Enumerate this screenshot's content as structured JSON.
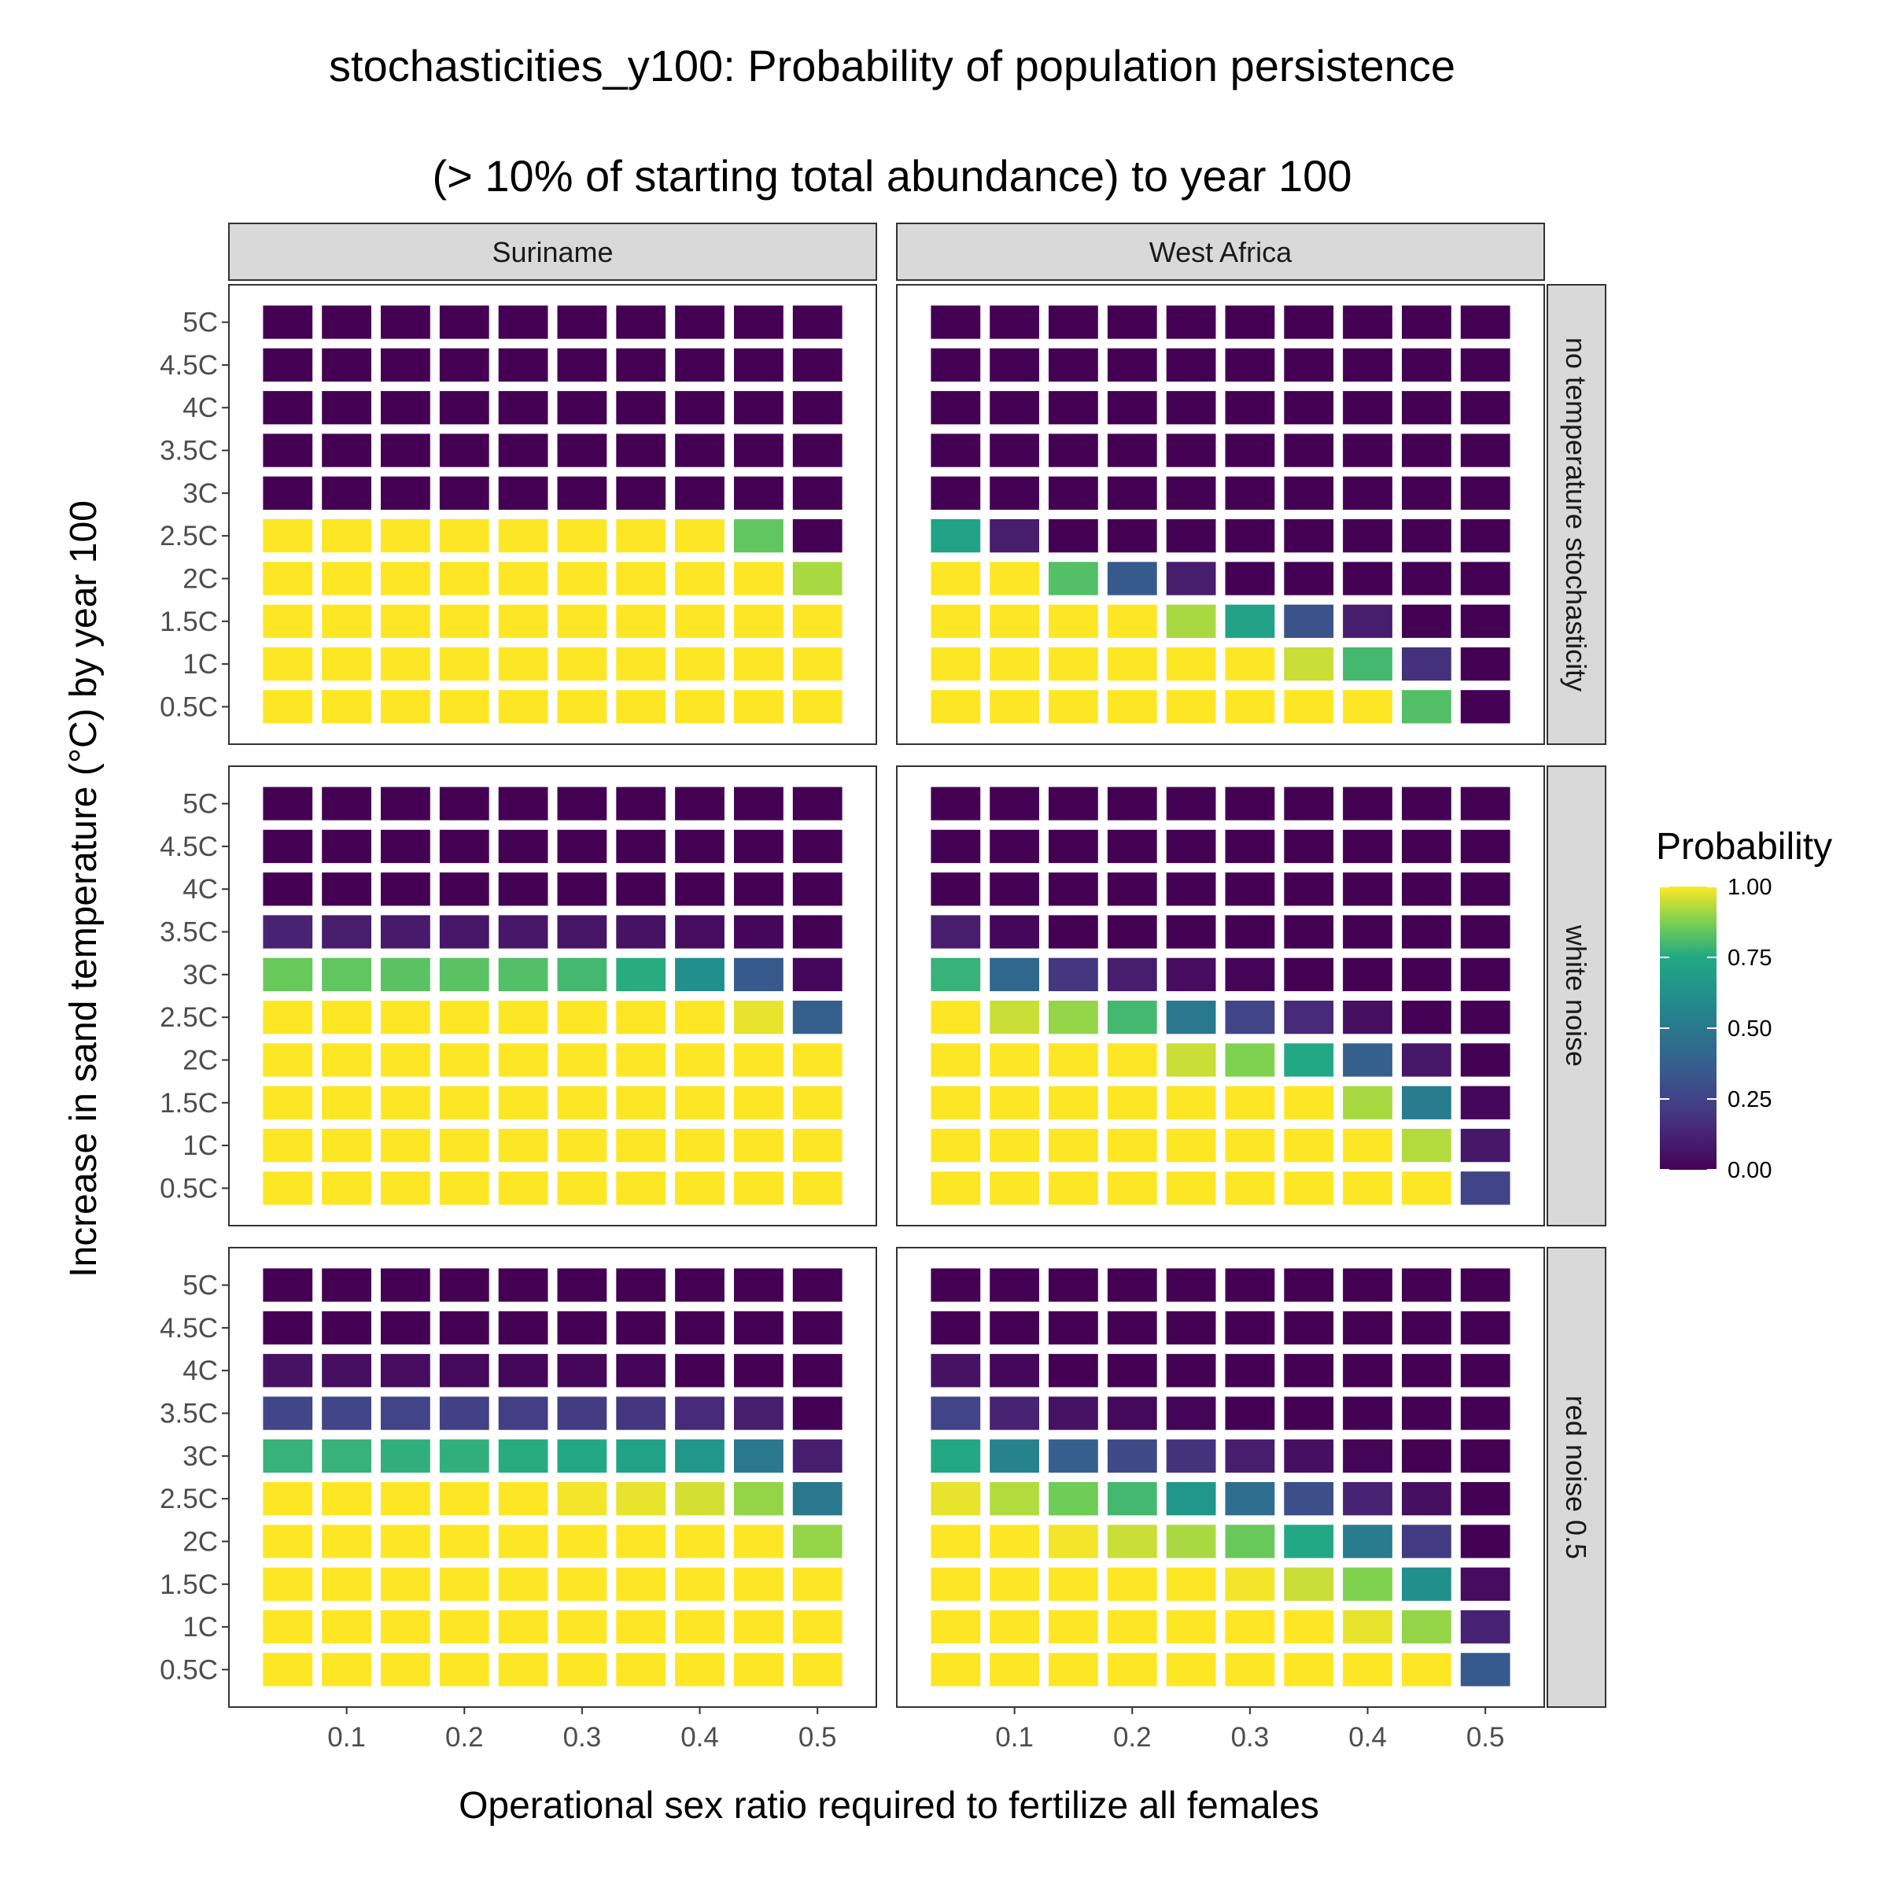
{
  "chart_data": {
    "type": "heatmap",
    "title_line1": "stochasticities_y100: Probability of population persistence",
    "title_line2": "(> 10% of starting total abundance) to year 100",
    "xlabel": "Operational sex ratio required to fertilize all females",
    "ylabel": "Increase in sand temperature (°C) by year 100",
    "x": [
      0.05,
      0.1,
      0.15,
      0.2,
      0.25,
      0.3,
      0.35,
      0.4,
      0.45,
      0.5
    ],
    "x_tick_values": [
      0.1,
      0.2,
      0.3,
      0.4,
      0.5
    ],
    "x_tick_labels": [
      "0.1",
      "0.2",
      "0.3",
      "0.4",
      "0.5"
    ],
    "y_labels": [
      "5C",
      "4.5C",
      "4C",
      "3.5C",
      "3C",
      "2.5C",
      "2C",
      "1.5C",
      "1C",
      "0.5C"
    ],
    "column_facets": [
      "Suriname",
      "West Africa"
    ],
    "row_facets": [
      "no temperature stochasticity",
      "white noise",
      "red noise 0.5"
    ],
    "legend": {
      "title": "Probability",
      "ticks": [
        "1.00",
        "0.75",
        "0.50",
        "0.25",
        "0.00"
      ],
      "tick_values": [
        1.0,
        0.75,
        0.5,
        0.25,
        0.0
      ],
      "colormap": "viridis",
      "placement": "right"
    },
    "panels": [
      {
        "column": "Suriname",
        "row": "no temperature stochasticity",
        "values": [
          [
            0,
            0,
            0,
            0,
            0,
            0,
            0,
            0,
            0,
            0
          ],
          [
            0,
            0,
            0,
            0,
            0,
            0,
            0,
            0,
            0,
            0
          ],
          [
            0,
            0,
            0,
            0,
            0,
            0,
            0,
            0,
            0,
            0
          ],
          [
            0,
            0,
            0,
            0,
            0,
            0,
            0,
            0,
            0,
            0
          ],
          [
            0,
            0,
            0,
            0,
            0,
            0,
            0,
            0,
            0,
            0
          ],
          [
            1,
            1,
            1,
            1,
            1,
            1,
            1,
            1,
            0.84,
            0
          ],
          [
            1,
            1,
            1,
            1,
            1,
            1,
            1,
            1,
            1,
            0.92
          ],
          [
            1,
            1,
            1,
            1,
            1,
            1,
            1,
            1,
            1,
            1
          ],
          [
            1,
            1,
            1,
            1,
            1,
            1,
            1,
            1,
            1,
            1
          ],
          [
            1,
            1,
            1,
            1,
            1,
            1,
            1,
            1,
            1,
            1
          ]
        ]
      },
      {
        "column": "West Africa",
        "row": "no temperature stochasticity",
        "values": [
          [
            0,
            0,
            0,
            0,
            0,
            0,
            0,
            0,
            0,
            0
          ],
          [
            0,
            0,
            0,
            0,
            0,
            0,
            0,
            0,
            0,
            0
          ],
          [
            0,
            0,
            0,
            0,
            0,
            0,
            0,
            0,
            0,
            0
          ],
          [
            0,
            0,
            0,
            0,
            0,
            0,
            0,
            0,
            0,
            0
          ],
          [
            0,
            0,
            0,
            0,
            0,
            0,
            0,
            0,
            0,
            0
          ],
          [
            0.72,
            0.1,
            0,
            0,
            0,
            0,
            0,
            0,
            0,
            0
          ],
          [
            1,
            1,
            0.82,
            0.35,
            0.1,
            0,
            0,
            0,
            0,
            0
          ],
          [
            1,
            1,
            1,
            1,
            0.92,
            0.72,
            0.32,
            0.1,
            0,
            0
          ],
          [
            1,
            1,
            1,
            1,
            1,
            1,
            0.95,
            0.8,
            0.18,
            0
          ],
          [
            1,
            1,
            1,
            1,
            1,
            1,
            1,
            1,
            0.82,
            0
          ]
        ]
      },
      {
        "column": "Suriname",
        "row": "white noise",
        "values": [
          [
            0,
            0,
            0,
            0,
            0,
            0,
            0,
            0,
            0,
            0
          ],
          [
            0,
            0,
            0,
            0,
            0,
            0,
            0,
            0,
            0,
            0
          ],
          [
            0,
            0,
            0,
            0,
            0,
            0,
            0,
            0,
            0,
            0
          ],
          [
            0.12,
            0.1,
            0.09,
            0.08,
            0.08,
            0.07,
            0.06,
            0.04,
            0.02,
            0
          ],
          [
            0.85,
            0.84,
            0.83,
            0.83,
            0.82,
            0.8,
            0.76,
            0.62,
            0.35,
            0.02
          ],
          [
            1,
            1,
            1,
            1,
            1,
            1,
            1,
            1,
            0.98,
            0.38
          ],
          [
            1,
            1,
            1,
            1,
            1,
            1,
            1,
            1,
            1,
            1
          ],
          [
            1,
            1,
            1,
            1,
            1,
            1,
            1,
            1,
            1,
            1
          ],
          [
            1,
            1,
            1,
            1,
            1,
            1,
            1,
            1,
            1,
            1
          ],
          [
            1,
            1,
            1,
            1,
            1,
            1,
            1,
            1,
            1,
            1
          ]
        ]
      },
      {
        "column": "West Africa",
        "row": "white noise",
        "values": [
          [
            0,
            0,
            0,
            0,
            0,
            0,
            0,
            0,
            0,
            0
          ],
          [
            0,
            0,
            0,
            0,
            0,
            0,
            0,
            0,
            0,
            0
          ],
          [
            0,
            0,
            0,
            0,
            0,
            0,
            0,
            0,
            0,
            0
          ],
          [
            0.1,
            0.02,
            0,
            0,
            0,
            0,
            0,
            0,
            0,
            0
          ],
          [
            0.78,
            0.42,
            0.2,
            0.1,
            0.04,
            0.01,
            0,
            0,
            0,
            0
          ],
          [
            1,
            0.95,
            0.9,
            0.8,
            0.5,
            0.25,
            0.15,
            0.05,
            0,
            0
          ],
          [
            1,
            1,
            1,
            1,
            0.95,
            0.88,
            0.75,
            0.38,
            0.08,
            0
          ],
          [
            1,
            1,
            1,
            1,
            1,
            1,
            1,
            0.92,
            0.52,
            0.02
          ],
          [
            1,
            1,
            1,
            1,
            1,
            1,
            1,
            1,
            0.93,
            0.08
          ],
          [
            1,
            1,
            1,
            1,
            1,
            1,
            1,
            1,
            1,
            0.25
          ]
        ]
      },
      {
        "column": "Suriname",
        "row": "red noise 0.5",
        "values": [
          [
            0,
            0,
            0,
            0,
            0,
            0,
            0,
            0,
            0,
            0
          ],
          [
            0,
            0,
            0,
            0,
            0,
            0,
            0,
            0,
            0,
            0
          ],
          [
            0.06,
            0.05,
            0.04,
            0.03,
            0.02,
            0.02,
            0.01,
            0,
            0,
            0
          ],
          [
            0.26,
            0.26,
            0.25,
            0.24,
            0.23,
            0.22,
            0.2,
            0.15,
            0.1,
            0
          ],
          [
            0.78,
            0.78,
            0.77,
            0.77,
            0.76,
            0.75,
            0.72,
            0.66,
            0.5,
            0.1
          ],
          [
            1,
            1,
            1,
            1,
            1,
            0.99,
            0.98,
            0.96,
            0.9,
            0.5
          ],
          [
            1,
            1,
            1,
            1,
            1,
            1,
            1,
            1,
            1,
            0.9
          ],
          [
            1,
            1,
            1,
            1,
            1,
            1,
            1,
            1,
            1,
            1
          ],
          [
            1,
            1,
            1,
            1,
            1,
            1,
            1,
            1,
            1,
            1
          ],
          [
            1,
            1,
            1,
            1,
            1,
            1,
            1,
            1,
            1,
            1
          ]
        ]
      },
      {
        "column": "West Africa",
        "row": "red noise 0.5",
        "values": [
          [
            0,
            0,
            0,
            0,
            0,
            0,
            0,
            0,
            0,
            0
          ],
          [
            0,
            0,
            0,
            0,
            0,
            0,
            0,
            0,
            0,
            0
          ],
          [
            0.06,
            0.02,
            0,
            0,
            0,
            0,
            0,
            0,
            0,
            0
          ],
          [
            0.25,
            0.12,
            0.06,
            0.03,
            0.01,
            0,
            0,
            0,
            0,
            0
          ],
          [
            0.75,
            0.55,
            0.38,
            0.28,
            0.18,
            0.1,
            0.05,
            0.01,
            0,
            0
          ],
          [
            0.98,
            0.93,
            0.86,
            0.8,
            0.65,
            0.45,
            0.3,
            0.12,
            0.05,
            0
          ],
          [
            1,
            1,
            0.99,
            0.95,
            0.92,
            0.85,
            0.75,
            0.52,
            0.22,
            0
          ],
          [
            1,
            1,
            1,
            1,
            1,
            0.99,
            0.95,
            0.88,
            0.62,
            0.04
          ],
          [
            1,
            1,
            1,
            1,
            1,
            1,
            1,
            0.98,
            0.9,
            0.12
          ],
          [
            1,
            1,
            1,
            1,
            1,
            1,
            1,
            1,
            1,
            0.35
          ]
        ]
      }
    ]
  }
}
